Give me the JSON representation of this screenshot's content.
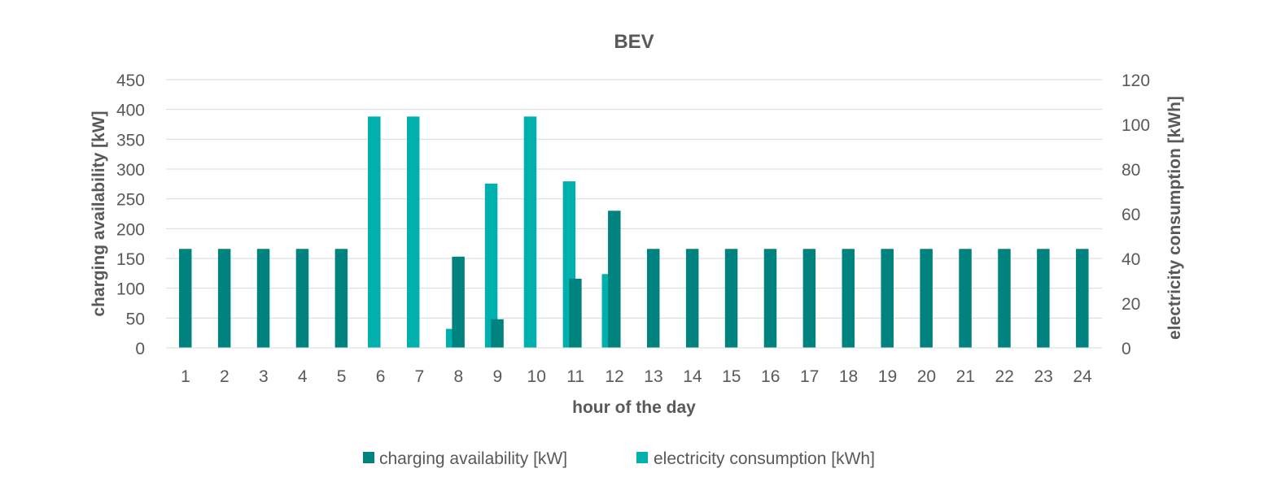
{
  "chart_data": {
    "type": "bar",
    "title": "BEV",
    "xlabel": "hour of the day",
    "ylabel": "charging availability [kW]",
    "y2label": "electricity consumption [kWh]",
    "categories": [
      "1",
      "2",
      "3",
      "4",
      "5",
      "6",
      "7",
      "8",
      "9",
      "10",
      "11",
      "12",
      "13",
      "14",
      "15",
      "16",
      "17",
      "18",
      "19",
      "20",
      "21",
      "22",
      "23",
      "24"
    ],
    "ylim": [
      0,
      450
    ],
    "y2lim": [
      0,
      120
    ],
    "yticks": [
      "0",
      "50",
      "100",
      "150",
      "200",
      "250",
      "300",
      "350",
      "400",
      "450"
    ],
    "y2ticks": [
      "0",
      "20",
      "40",
      "60",
      "80",
      "100",
      "120"
    ],
    "grid": true,
    "legend_position": "bottom",
    "series": [
      {
        "name": "charging availability [kW]",
        "axis": "left",
        "color": "#00827f",
        "values": [
          166,
          166,
          166,
          166,
          166,
          0,
          0,
          153,
          48,
          0,
          116,
          230,
          166,
          166,
          166,
          166,
          166,
          166,
          166,
          166,
          166,
          166,
          166,
          166
        ]
      },
      {
        "name": "electricity consumption [kWh]",
        "axis": "right",
        "color": "#00b0ac",
        "values": [
          0,
          0,
          0,
          0,
          0,
          103.5,
          103.5,
          8.5,
          73.5,
          103.5,
          74.5,
          33,
          0,
          0,
          0,
          0,
          0,
          0,
          0,
          0,
          0,
          0,
          0,
          0
        ]
      }
    ]
  }
}
